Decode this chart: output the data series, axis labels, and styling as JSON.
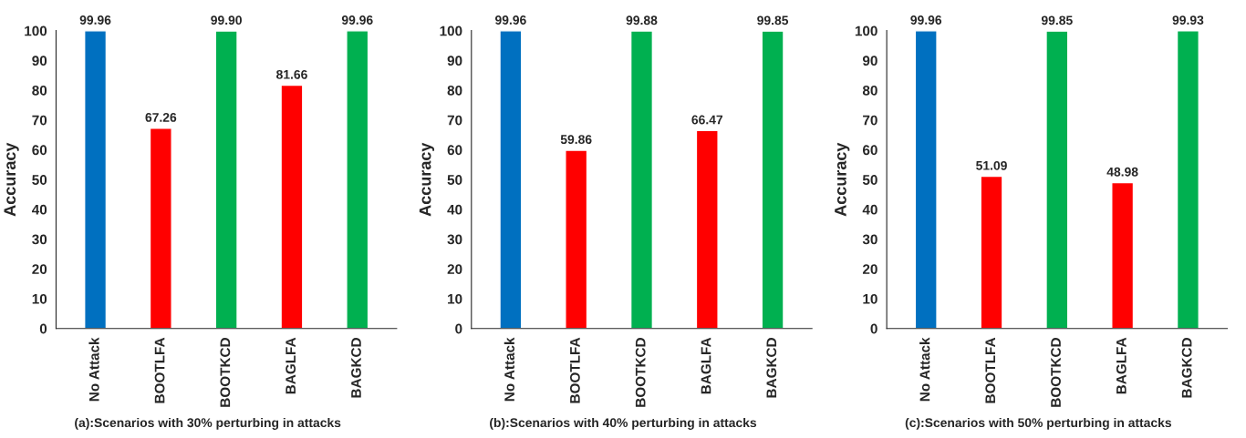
{
  "chart_data": [
    {
      "type": "bar",
      "ylabel": "Accuracy",
      "categories": [
        "No Attack",
        "BOOTLFA",
        "BOOTKCD",
        "BAGLFA",
        "BAGKCD"
      ],
      "values": [
        99.96,
        67.26,
        99.9,
        81.66,
        99.96
      ],
      "colors": [
        "#0070c0",
        "#ff0000",
        "#00b050",
        "#ff0000",
        "#00b050"
      ],
      "value_labels": [
        "99.96",
        "67.26",
        "99.90",
        "81.66",
        "99.96"
      ],
      "ylim": [
        0,
        100
      ],
      "yticks": [
        0,
        10,
        20,
        30,
        40,
        50,
        60,
        70,
        80,
        90,
        100
      ],
      "grid": false,
      "legend": false,
      "annotations": [
        "(a):Scenarios with 30% perturbing in attacks"
      ]
    },
    {
      "type": "bar",
      "ylabel": "Accuracy",
      "categories": [
        "No Attack",
        "BOOTLFA",
        "BOOTKCD",
        "BAGLFA",
        "BAGKCD"
      ],
      "values": [
        99.96,
        59.86,
        99.88,
        66.47,
        99.85
      ],
      "colors": [
        "#0070c0",
        "#ff0000",
        "#00b050",
        "#ff0000",
        "#00b050"
      ],
      "value_labels": [
        "99.96",
        "59.86",
        "99.88",
        "66.47",
        "99.85"
      ],
      "ylim": [
        0,
        100
      ],
      "yticks": [
        0,
        10,
        20,
        30,
        40,
        50,
        60,
        70,
        80,
        90,
        100
      ],
      "grid": false,
      "legend": false,
      "annotations": [
        "(b):Scenarios with 40% perturbing in attacks"
      ]
    },
    {
      "type": "bar",
      "ylabel": "Accuracy",
      "categories": [
        "No Attack",
        "BOOTLFA",
        "BOOTKCD",
        "BAGLFA",
        "BAGKCD"
      ],
      "values": [
        99.96,
        51.09,
        99.85,
        48.98,
        99.93
      ],
      "colors": [
        "#0070c0",
        "#ff0000",
        "#00b050",
        "#ff0000",
        "#00b050"
      ],
      "value_labels": [
        "99.96",
        "51.09",
        "99.85",
        "48.98",
        "99.93"
      ],
      "ylim": [
        0,
        100
      ],
      "yticks": [
        0,
        10,
        20,
        30,
        40,
        50,
        60,
        70,
        80,
        90,
        100
      ],
      "grid": false,
      "legend": false,
      "annotations": [
        "(c):Scenarios with 50% perturbing in attacks"
      ]
    }
  ]
}
